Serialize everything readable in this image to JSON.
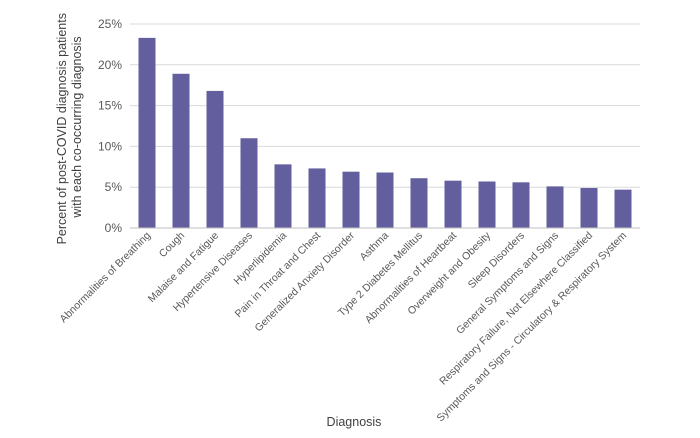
{
  "chart_data": {
    "type": "bar",
    "title": "",
    "xlabel": "Diagnosis",
    "ylabel_lines": [
      "Percent of post-COVID diagnosis patients",
      "with each co-occurring diagnosis"
    ],
    "ylim": [
      0,
      25
    ],
    "yticks": [
      0,
      5,
      10,
      15,
      20,
      25
    ],
    "ytick_labels": [
      "0%",
      "5%",
      "10%",
      "15%",
      "20%",
      "25%"
    ],
    "grid": true,
    "legend": "none",
    "bar_color": "#635f9e",
    "categories": [
      "Abnormalities of Breathing",
      "Cough",
      "Malaise and Fatigue",
      "Hypertensive Diseases",
      "Hyperlipidemia",
      "Pain in Throat and Chest",
      "Generalized Anxiety Disorder",
      "Asthma",
      "Type 2 Diabetes Mellitus",
      "Abnormalities of Heartbeat",
      "Overweight and Obesity",
      "Sleep Disorders",
      "General Symptoms and Signs",
      "Respiratory Failure, Not Elsewhere Classified",
      "Symptoms and Signs - Circulatory & Respiratory System"
    ],
    "values": [
      23.3,
      18.9,
      16.8,
      11.0,
      7.8,
      7.3,
      6.9,
      6.8,
      6.1,
      5.8,
      5.7,
      5.6,
      5.1,
      4.9,
      4.7
    ]
  }
}
